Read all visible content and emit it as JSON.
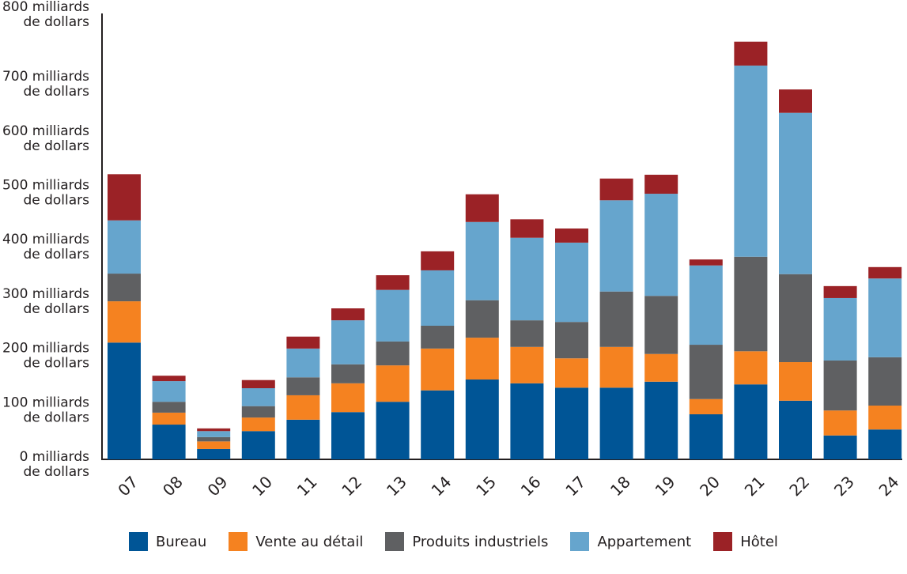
{
  "chart_data": {
    "type": "bar",
    "stacked": true,
    "categories": [
      "07",
      "08",
      "09",
      "10",
      "11",
      "12",
      "13",
      "14",
      "15",
      "16",
      "17",
      "18",
      "19",
      "20",
      "21",
      "22",
      "23",
      "24"
    ],
    "series": [
      {
        "name": "Bureau",
        "color": "#005596",
        "values": [
          215,
          64,
          19,
          52,
          73,
          87,
          106,
          127,
          147,
          140,
          132,
          132,
          143,
          83,
          138,
          108,
          44,
          55
        ]
      },
      {
        "name": "Vente au détail",
        "color": "#f58220",
        "values": [
          76,
          22,
          14,
          25,
          45,
          53,
          67,
          77,
          77,
          67,
          54,
          75,
          51,
          28,
          61,
          71,
          46,
          44
        ]
      },
      {
        "name": "Produits industriels",
        "color": "#5f6062",
        "values": [
          51,
          20,
          8,
          21,
          33,
          35,
          44,
          42,
          69,
          49,
          67,
          102,
          107,
          100,
          174,
          162,
          92,
          89
        ]
      },
      {
        "name": "Appartement",
        "color": "#66a5cd",
        "values": [
          98,
          38,
          11,
          33,
          53,
          81,
          95,
          102,
          144,
          152,
          146,
          168,
          188,
          146,
          352,
          297,
          115,
          145
        ]
      },
      {
        "name": "Hôtel",
        "color": "#9b2226",
        "values": [
          85,
          10,
          5,
          15,
          22,
          22,
          27,
          35,
          51,
          34,
          26,
          40,
          35,
          11,
          44,
          43,
          22,
          21
        ]
      }
    ],
    "ylim": [
      0,
      800
    ],
    "yticks": [
      0,
      100,
      200,
      300,
      400,
      500,
      600,
      700,
      800
    ],
    "ytick_labels": [
      [
        "0 milliards",
        "de dollars"
      ],
      [
        "100 milliards",
        "de dollars"
      ],
      [
        "200 milliards",
        "de dollars"
      ],
      [
        "300 milliards",
        "de dollars"
      ],
      [
        "400 milliards",
        "de dollars"
      ],
      [
        "500 milliards",
        "de dollars"
      ],
      [
        "600 milliards",
        "de dollars"
      ],
      [
        "700 milliards",
        "de dollars"
      ],
      [
        "800 milliards",
        "de dollars"
      ]
    ],
    "grid": false,
    "legend_position": "bottom"
  }
}
